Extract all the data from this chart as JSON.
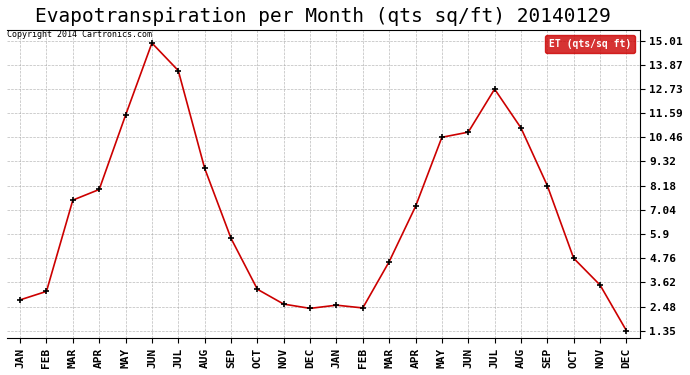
{
  "title": "Evapotranspiration per Month (qts sq/ft) 20140129",
  "copyright": "Copyright 2014 Cartronics.com",
  "legend_label": "ET (qts/sq ft)",
  "x_labels": [
    "JAN",
    "FEB",
    "MAR",
    "APR",
    "MAY",
    "JUN",
    "JUL",
    "AUG",
    "SEP",
    "OCT",
    "NOV",
    "DEC",
    "JAN",
    "FEB",
    "MAR",
    "APR",
    "MAY",
    "JUN",
    "JUL",
    "AUG",
    "SEP",
    "OCT",
    "NOV",
    "DEC"
  ],
  "values": [
    2.8,
    3.2,
    7.5,
    8.0,
    11.5,
    14.9,
    13.6,
    9.0,
    5.7,
    3.3,
    2.6,
    2.4,
    2.55,
    2.42,
    4.6,
    7.2,
    10.46,
    10.7,
    12.73,
    10.9,
    8.18,
    4.76,
    3.5,
    1.35
  ],
  "line_color": "#cc0000",
  "marker_color": "#000000",
  "grid_color": "#aaaaaa",
  "background_color": "#ffffff",
  "yticks": [
    1.35,
    2.48,
    3.62,
    4.76,
    5.9,
    7.04,
    8.18,
    9.32,
    10.46,
    11.59,
    12.73,
    13.87,
    15.01
  ],
  "ylim": [
    1.0,
    15.5
  ],
  "title_fontsize": 14,
  "tick_fontsize": 8,
  "legend_bg": "#cc0000",
  "legend_text_color": "#ffffff"
}
